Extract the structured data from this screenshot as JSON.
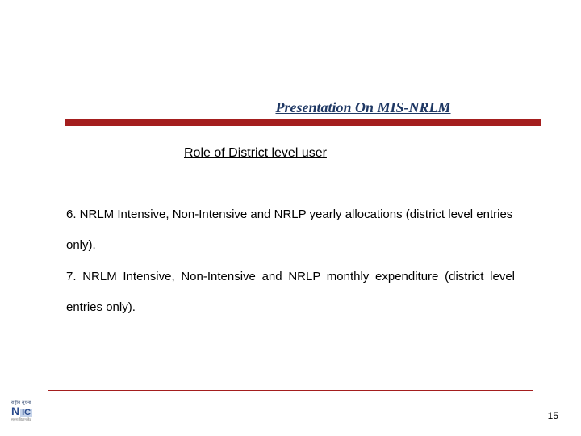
{
  "header": {
    "title": "Presentation On MIS-NRLM",
    "title_color": "#1f3864",
    "title_fontsize": 18,
    "bar_color": "#a41e1e"
  },
  "subtitle": "Role of District level user",
  "body": {
    "item6": "6. NRLM Intensive, Non-Intensive and NRLP yearly allocations (district level entries only).",
    "item7": "7. NRLM Intensive, Non-Intensive and NRLP monthly expenditure (district level entries only)."
  },
  "footer": {
    "line_color": "#a41e1e",
    "page_number": "15"
  },
  "logo": {
    "top": "राष्ट्रीय सूचना",
    "mark_main": "N",
    "mark_box": "IC",
    "sub": "सूचना विज्ञान केंद्र"
  },
  "colors": {
    "background": "#ffffff",
    "text": "#000000"
  }
}
